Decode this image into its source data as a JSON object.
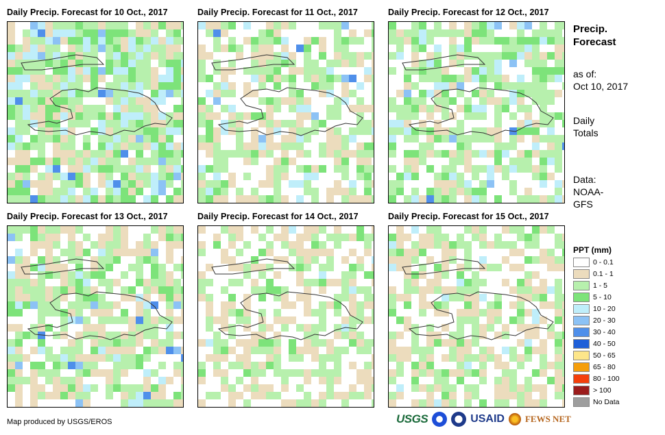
{
  "panels": [
    {
      "title": "Daily Precip. Forecast for 10 Oct., 2017"
    },
    {
      "title": "Daily Precip. Forecast for 11 Oct., 2017"
    },
    {
      "title": "Daily Precip. Forecast for 12 Oct., 2017"
    },
    {
      "title": "Daily Precip. Forecast for 13 Oct., 2017"
    },
    {
      "title": "Daily Precip. Forecast for 14 Oct., 2017"
    },
    {
      "title": "Daily Precip. Forecast for 15 Oct., 2017"
    }
  ],
  "side_info": {
    "title_line1": "Precip.",
    "title_line2": "Forecast",
    "asof_label": "as of:",
    "asof_date": "Oct 10, 2017",
    "totals_line1": "Daily",
    "totals_line2": "Totals",
    "data_label": "Data:",
    "data_line1": "NOAA-",
    "data_line2": "GFS"
  },
  "legend": {
    "title": "PPT (mm)",
    "items": [
      {
        "label": "0 - 0.1",
        "color": "#ffffff"
      },
      {
        "label": "0.1 - 1",
        "color": "#ecdcbd"
      },
      {
        "label": "1 - 5",
        "color": "#b7f0ad"
      },
      {
        "label": "5 - 10",
        "color": "#7de37a"
      },
      {
        "label": "10 - 20",
        "color": "#bfeefa"
      },
      {
        "label": "20 - 30",
        "color": "#8cc2f5"
      },
      {
        "label": "30 - 40",
        "color": "#4f8fea"
      },
      {
        "label": "40 - 50",
        "color": "#1f5fd8"
      },
      {
        "label": "50 - 65",
        "color": "#fde68a"
      },
      {
        "label": "65 - 80",
        "color": "#f59e0b"
      },
      {
        "label": "80 - 100",
        "color": "#f43f0b"
      },
      {
        "label": "> 100",
        "color": "#9b1c1c"
      },
      {
        "label": "No Data",
        "color": "#9e9e9e"
      }
    ]
  },
  "credit": "Map produced by USGS/EROS",
  "logos": {
    "usgs": "USGS",
    "usaid": "USAID",
    "fewsnet": "FEWS NET"
  }
}
